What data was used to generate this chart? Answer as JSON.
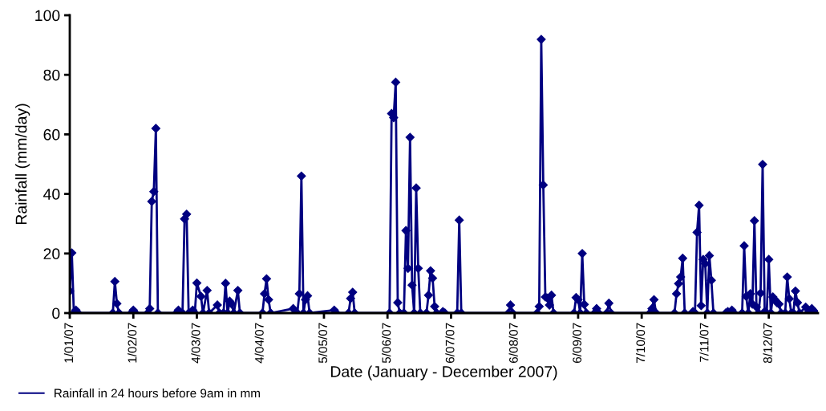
{
  "chart_data": {
    "type": "line",
    "xlabel": "Date (January - December 2007)",
    "ylabel": "Rainfall (mm/day)",
    "x": [
      "2007-01-01",
      "2007-01-02",
      "2007-01-03",
      "2007-01-04",
      "2007-01-05",
      "2007-01-22",
      "2007-01-23",
      "2007-01-24",
      "2007-01-25",
      "2007-01-31",
      "2007-02-01",
      "2007-02-02",
      "2007-02-08",
      "2007-02-09",
      "2007-02-10",
      "2007-02-11",
      "2007-02-12",
      "2007-02-13",
      "2007-02-22",
      "2007-02-23",
      "2007-02-24",
      "2007-02-25",
      "2007-02-26",
      "2007-02-27",
      "2007-02-28",
      "2007-03-02",
      "2007-03-03",
      "2007-03-04",
      "2007-03-06",
      "2007-03-07",
      "2007-03-09",
      "2007-03-10",
      "2007-03-14",
      "2007-03-15",
      "2007-03-17",
      "2007-03-18",
      "2007-03-19",
      "2007-03-20",
      "2007-03-21",
      "2007-03-22",
      "2007-03-24",
      "2007-03-25",
      "2007-04-05",
      "2007-04-06",
      "2007-04-07",
      "2007-04-08",
      "2007-04-09",
      "2007-04-20",
      "2007-04-21",
      "2007-04-22",
      "2007-04-23",
      "2007-04-24",
      "2007-04-25",
      "2007-04-26",
      "2007-04-27",
      "2007-04-28",
      "2007-05-10",
      "2007-05-11",
      "2007-05-17",
      "2007-05-18",
      "2007-05-19",
      "2007-05-20",
      "2007-06-06",
      "2007-06-07",
      "2007-06-08",
      "2007-06-09",
      "2007-06-10",
      "2007-06-11",
      "2007-06-13",
      "2007-06-14",
      "2007-06-15",
      "2007-06-16",
      "2007-06-17",
      "2007-06-18",
      "2007-06-19",
      "2007-06-20",
      "2007-06-21",
      "2007-06-24",
      "2007-06-25",
      "2007-06-26",
      "2007-06-27",
      "2007-06-28",
      "2007-06-29",
      "2007-07-02",
      "2007-07-03",
      "2007-07-09",
      "2007-07-10",
      "2007-07-11",
      "2007-08-03",
      "2007-08-04",
      "2007-08-05",
      "2007-08-17",
      "2007-08-18",
      "2007-08-19",
      "2007-08-20",
      "2007-08-21",
      "2007-08-22",
      "2007-08-23",
      "2007-08-24",
      "2007-08-25",
      "2007-09-04",
      "2007-09-05",
      "2007-09-06",
      "2007-09-07",
      "2007-09-08",
      "2007-09-09",
      "2007-09-10",
      "2007-09-14",
      "2007-09-15",
      "2007-09-16",
      "2007-09-20",
      "2007-09-21",
      "2007-09-22",
      "2007-10-11",
      "2007-10-12",
      "2007-10-13",
      "2007-10-14",
      "2007-10-23",
      "2007-10-24",
      "2007-10-25",
      "2007-10-26",
      "2007-10-27",
      "2007-10-28",
      "2007-11-01",
      "2007-11-02",
      "2007-11-03",
      "2007-11-04",
      "2007-11-05",
      "2007-11-06",
      "2007-11-07",
      "2007-11-08",
      "2007-11-09",
      "2007-11-10",
      "2007-11-11",
      "2007-11-17",
      "2007-11-18",
      "2007-11-19",
      "2007-11-20",
      "2007-11-21",
      "2007-11-25",
      "2007-11-26",
      "2007-11-27",
      "2007-11-28",
      "2007-11-29",
      "2007-11-30",
      "2007-12-01",
      "2007-12-02",
      "2007-12-03",
      "2007-12-04",
      "2007-12-05",
      "2007-12-06",
      "2007-12-07",
      "2007-12-08",
      "2007-12-09",
      "2007-12-10",
      "2007-12-11",
      "2007-12-12",
      "2007-12-13",
      "2007-12-14",
      "2007-12-16",
      "2007-12-17",
      "2007-12-18",
      "2007-12-19",
      "2007-12-20",
      "2007-12-21",
      "2007-12-22",
      "2007-12-23",
      "2007-12-26",
      "2007-12-27",
      "2007-12-29",
      "2007-12-30",
      "2007-12-31"
    ],
    "series": [
      {
        "name": "Rainfall in 24 hours before 9am in mm",
        "color": "#000080",
        "values": [
          7.4,
          20.2,
          0,
          1,
          0,
          0,
          10.6,
          3.2,
          0,
          0,
          1,
          0,
          0,
          1.5,
          37.5,
          40.8,
          62,
          0,
          0,
          1,
          0,
          0,
          31.6,
          33.2,
          0,
          1,
          0,
          10.1,
          5.6,
          0,
          7.6,
          0,
          2.7,
          0,
          0,
          10,
          0,
          4,
          3,
          0,
          7.6,
          0,
          0,
          6.5,
          11.5,
          4.5,
          0,
          1.5,
          0,
          0,
          6.5,
          46,
          0,
          4.5,
          5.8,
          0,
          1,
          0,
          0,
          4.9,
          7,
          0,
          0,
          67,
          65.6,
          77.5,
          3.5,
          0,
          0,
          27.7,
          15,
          59,
          9.4,
          0,
          42,
          15,
          0,
          0,
          6,
          14.2,
          11.7,
          2.2,
          0,
          0.5,
          0,
          0,
          31.2,
          0,
          0,
          2.7,
          0,
          0,
          2.2,
          91.9,
          43,
          5.4,
          5,
          2.7,
          6,
          0,
          0,
          5.2,
          4.5,
          0,
          20,
          2.9,
          0,
          0,
          1.5,
          0,
          0,
          3.3,
          0,
          0,
          1.5,
          4.5,
          0,
          0,
          6.5,
          9.9,
          12.1,
          18.4,
          0,
          0.5,
          0,
          27.1,
          36.2,
          2.5,
          18,
          16.6,
          0,
          19.3,
          11,
          0,
          0,
          0.5,
          0,
          1,
          0,
          0,
          22.6,
          5.6,
          0,
          6.5,
          3,
          31,
          2,
          0,
          6.7,
          49.9,
          0.5,
          0,
          18,
          0,
          5.4,
          4.5,
          3.5,
          3,
          0,
          0,
          12.1,
          4.8,
          0,
          0,
          7.4,
          3.5,
          0,
          2,
          0,
          1.5,
          0.5,
          0
        ]
      }
    ],
    "xlim": [
      "2007-01-01",
      "2008-01-01"
    ],
    "xticks": [
      {
        "value": "2007-01-01",
        "label": "1/01/07"
      },
      {
        "value": "2007-02-01",
        "label": "1/02/07"
      },
      {
        "value": "2007-03-04",
        "label": "4/03/07"
      },
      {
        "value": "2007-04-04",
        "label": "4/04/07"
      },
      {
        "value": "2007-05-05",
        "label": "5/05/07"
      },
      {
        "value": "2007-06-05",
        "label": "5/06/07"
      },
      {
        "value": "2007-07-06",
        "label": "6/07/07"
      },
      {
        "value": "2007-08-06",
        "label": "6/08/07"
      },
      {
        "value": "2007-09-06",
        "label": "6/09/07"
      },
      {
        "value": "2007-10-07",
        "label": "7/10/07"
      },
      {
        "value": "2007-11-07",
        "label": "7/11/07"
      },
      {
        "value": "2007-12-08",
        "label": "8/12/07"
      }
    ],
    "ylim": [
      0,
      100
    ],
    "yticks": [
      0,
      20,
      40,
      60,
      80,
      100
    ],
    "grid": false,
    "legend": "bottom left",
    "marker": "diamond",
    "line_style": "solid"
  }
}
